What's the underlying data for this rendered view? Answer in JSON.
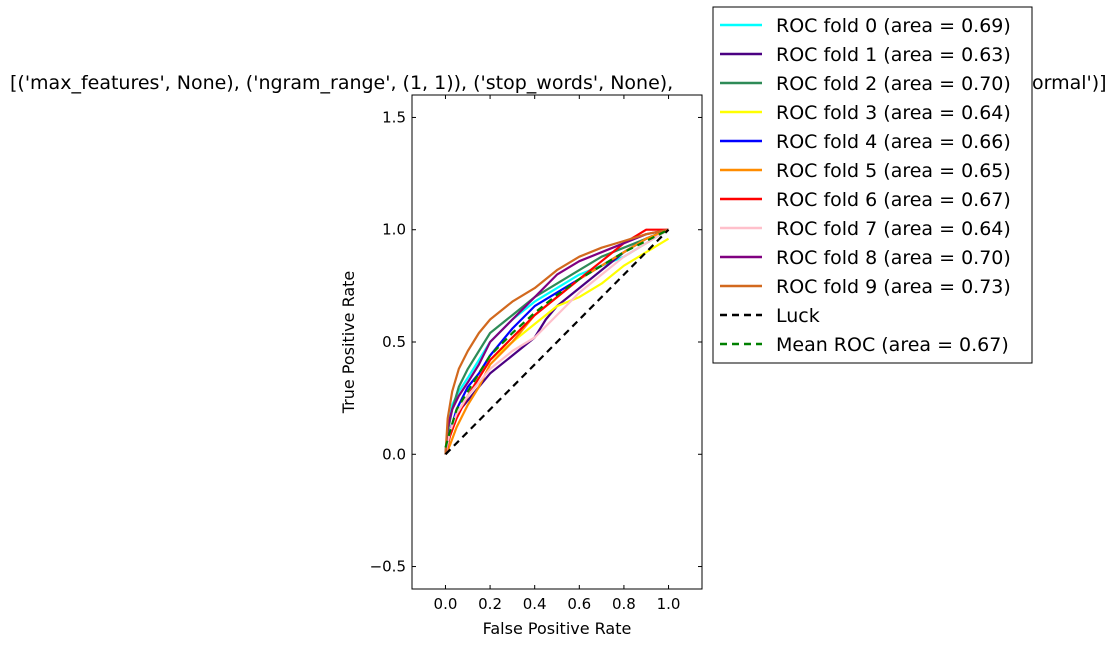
{
  "chart_data": {
    "type": "line",
    "title": "[('max_features', None), ('ngram_range', (1, 1)), ('stop_words', None), ('min_df', 1), ('mindf', 1), ('class_weight', 'balanced'), ('type', 'normal')]",
    "title_visible": "[('max_features', None), ('ngram_range', (1, 1)), ('stop_words', None),",
    "title_tail_visible": "ormal')]",
    "xlabel": "False Positive Rate",
    "ylabel": "True Positive Rate",
    "xlim": [
      -0.15,
      1.15
    ],
    "ylim": [
      -0.6,
      1.6
    ],
    "xticks": [
      "0.0",
      "0.2",
      "0.4",
      "0.6",
      "0.8",
      "1.0"
    ],
    "yticks": [
      "−0.5",
      "0.0",
      "0.5",
      "1.0",
      "1.5"
    ],
    "xtick_values": [
      0.0,
      0.2,
      0.4,
      0.6,
      0.8,
      1.0
    ],
    "ytick_values": [
      -0.5,
      0.0,
      0.5,
      1.0,
      1.5
    ],
    "legend_position": "outside-right",
    "series": [
      {
        "name": "ROC fold 0 (area = 0.69)",
        "color": "#00ffff",
        "style": "solid",
        "x": [
          0,
          0.01,
          0.03,
          0.06,
          0.1,
          0.15,
          0.2,
          0.3,
          0.4,
          0.5,
          0.6,
          0.7,
          0.8,
          0.9,
          1.0
        ],
        "y": [
          0,
          0.12,
          0.22,
          0.28,
          0.34,
          0.42,
          0.5,
          0.6,
          0.68,
          0.74,
          0.8,
          0.84,
          0.88,
          0.94,
          1.0
        ]
      },
      {
        "name": "ROC fold 1 (area = 0.63)",
        "color": "#4b0082",
        "style": "solid",
        "x": [
          0,
          0.02,
          0.05,
          0.1,
          0.15,
          0.2,
          0.3,
          0.4,
          0.45,
          0.5,
          0.6,
          0.7,
          0.8,
          0.9,
          1.0
        ],
        "y": [
          0,
          0.1,
          0.18,
          0.24,
          0.3,
          0.36,
          0.44,
          0.52,
          0.6,
          0.66,
          0.74,
          0.82,
          0.9,
          0.96,
          1.0
        ]
      },
      {
        "name": "ROC fold 2 (area = 0.70)",
        "color": "#2e8b57",
        "style": "solid",
        "x": [
          0,
          0.01,
          0.03,
          0.06,
          0.1,
          0.15,
          0.2,
          0.3,
          0.4,
          0.5,
          0.6,
          0.7,
          0.8,
          0.9,
          1.0
        ],
        "y": [
          0,
          0.1,
          0.2,
          0.3,
          0.38,
          0.46,
          0.54,
          0.62,
          0.7,
          0.76,
          0.82,
          0.88,
          0.92,
          0.96,
          1.0
        ]
      },
      {
        "name": "ROC fold 3 (area = 0.64)",
        "color": "#ffff00",
        "style": "solid",
        "x": [
          0,
          0.02,
          0.05,
          0.1,
          0.15,
          0.2,
          0.3,
          0.4,
          0.5,
          0.6,
          0.7,
          0.8,
          0.9,
          1.0
        ],
        "y": [
          0,
          0.08,
          0.18,
          0.26,
          0.34,
          0.42,
          0.5,
          0.58,
          0.66,
          0.7,
          0.76,
          0.84,
          0.9,
          0.96
        ]
      },
      {
        "name": "ROC fold 4 (area = 0.66)",
        "color": "#0000ff",
        "style": "solid",
        "x": [
          0,
          0.02,
          0.05,
          0.1,
          0.15,
          0.2,
          0.3,
          0.4,
          0.5,
          0.6,
          0.7,
          0.8,
          0.9,
          1.0
        ],
        "y": [
          0,
          0.1,
          0.2,
          0.3,
          0.36,
          0.44,
          0.56,
          0.66,
          0.72,
          0.78,
          0.84,
          0.9,
          0.96,
          1.0
        ]
      },
      {
        "name": "ROC fold 5 (area = 0.65)",
        "color": "#ff8c00",
        "style": "solid",
        "x": [
          0,
          0.02,
          0.05,
          0.1,
          0.15,
          0.2,
          0.3,
          0.4,
          0.5,
          0.6,
          0.7,
          0.8,
          0.9,
          1.0
        ],
        "y": [
          0,
          0.04,
          0.12,
          0.22,
          0.3,
          0.4,
          0.5,
          0.62,
          0.7,
          0.78,
          0.84,
          0.9,
          0.96,
          1.0
        ]
      },
      {
        "name": "ROC fold 6 (area = 0.67)",
        "color": "#ff0000",
        "style": "solid",
        "x": [
          0,
          0.02,
          0.05,
          0.1,
          0.15,
          0.2,
          0.3,
          0.4,
          0.5,
          0.6,
          0.7,
          0.8,
          0.9,
          1.0
        ],
        "y": [
          0,
          0.08,
          0.16,
          0.26,
          0.34,
          0.42,
          0.52,
          0.62,
          0.7,
          0.78,
          0.86,
          0.94,
          1.0,
          1.0
        ]
      },
      {
        "name": "ROC fold 7 (area = 0.64)",
        "color": "#ffc0cb",
        "style": "solid",
        "x": [
          0,
          0.02,
          0.05,
          0.1,
          0.15,
          0.2,
          0.3,
          0.4,
          0.5,
          0.6,
          0.7,
          0.8,
          0.9,
          1.0
        ],
        "y": [
          0,
          0.1,
          0.18,
          0.26,
          0.32,
          0.38,
          0.46,
          0.52,
          0.62,
          0.72,
          0.8,
          0.88,
          0.94,
          1.0
        ]
      },
      {
        "name": "ROC fold 8 (area = 0.70)",
        "color": "#800080",
        "style": "solid",
        "x": [
          0,
          0.01,
          0.03,
          0.06,
          0.1,
          0.15,
          0.2,
          0.3,
          0.4,
          0.5,
          0.6,
          0.7,
          0.8,
          0.9,
          1.0
        ],
        "y": [
          0,
          0.12,
          0.2,
          0.26,
          0.32,
          0.4,
          0.5,
          0.6,
          0.7,
          0.8,
          0.86,
          0.9,
          0.94,
          0.98,
          1.0
        ]
      },
      {
        "name": "ROC fold 9 (area = 0.73)",
        "color": "#d2691e",
        "style": "solid",
        "x": [
          0,
          0.01,
          0.03,
          0.06,
          0.1,
          0.15,
          0.2,
          0.3,
          0.4,
          0.5,
          0.6,
          0.7,
          0.8,
          0.9,
          1.0
        ],
        "y": [
          0,
          0.16,
          0.28,
          0.38,
          0.46,
          0.54,
          0.6,
          0.68,
          0.74,
          0.82,
          0.88,
          0.92,
          0.95,
          0.98,
          1.0
        ]
      },
      {
        "name": "Luck",
        "color": "#000000",
        "style": "dashed",
        "x": [
          0,
          1
        ],
        "y": [
          0,
          1
        ]
      },
      {
        "name": "Mean ROC (area = 0.67)",
        "color": "#008000",
        "style": "dashed",
        "x": [
          0,
          0.02,
          0.05,
          0.1,
          0.15,
          0.2,
          0.3,
          0.4,
          0.5,
          0.6,
          0.7,
          0.8,
          0.9,
          1.0
        ],
        "y": [
          0.03,
          0.1,
          0.2,
          0.28,
          0.36,
          0.44,
          0.54,
          0.63,
          0.71,
          0.78,
          0.84,
          0.9,
          0.95,
          1.0
        ]
      }
    ]
  }
}
